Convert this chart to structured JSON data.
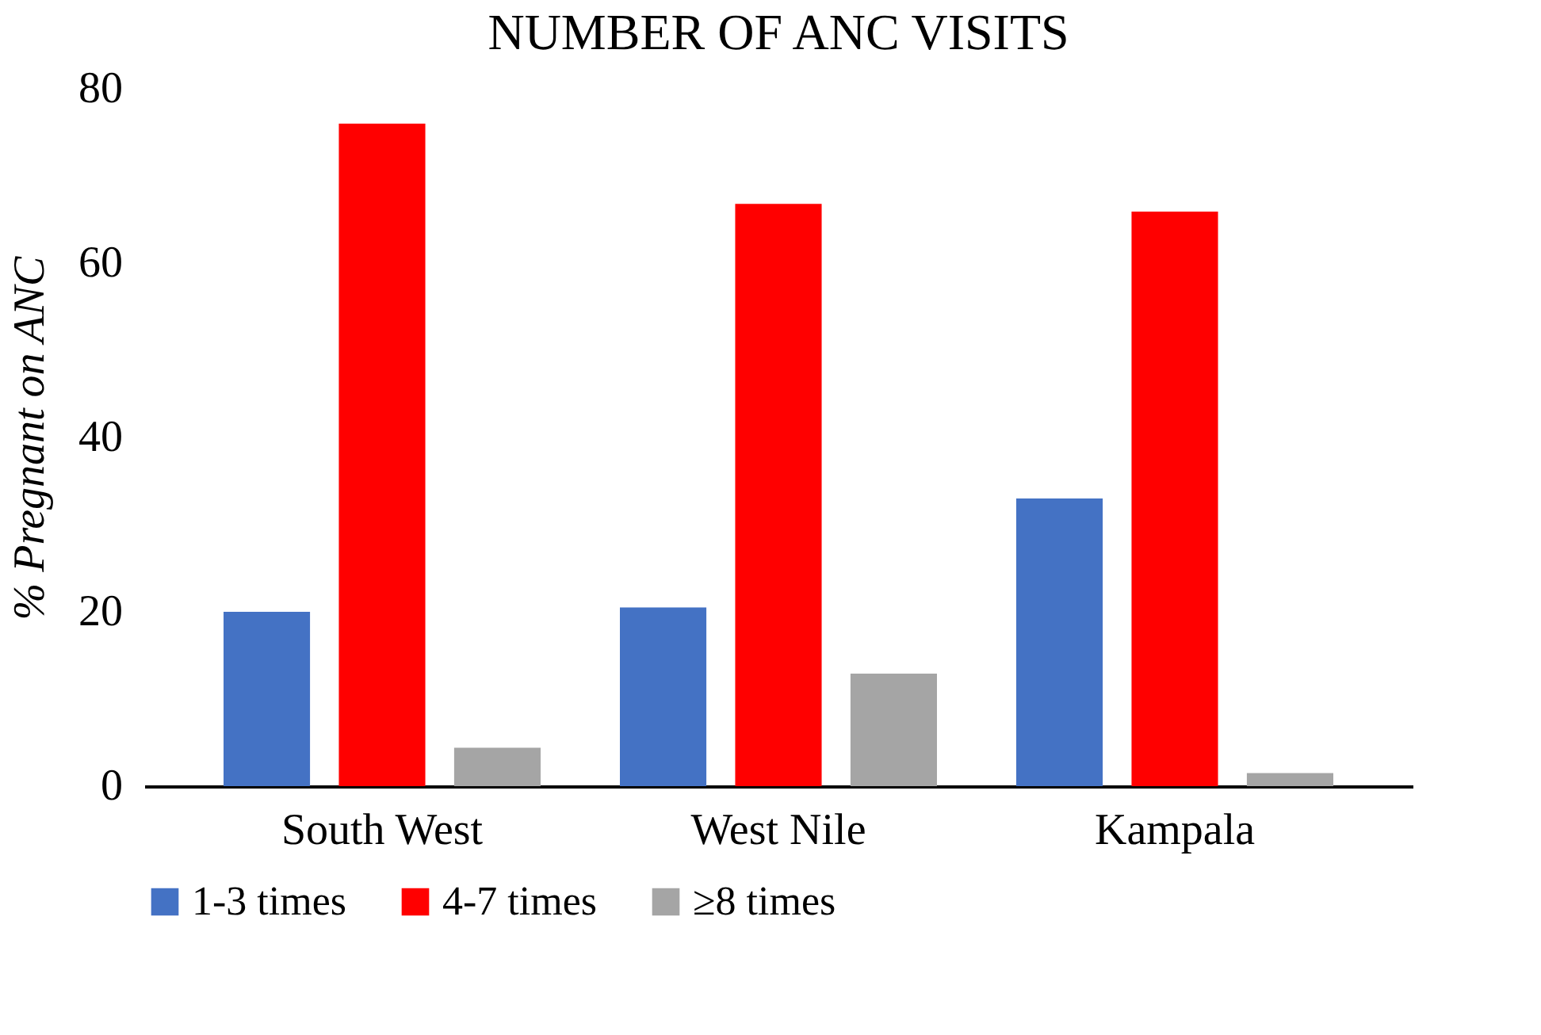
{
  "chart_data": {
    "type": "bar",
    "title": "NUMBER OF ANC VISITS",
    "ylabel": "% Pregnant on ANC",
    "categories": [
      "South West",
      "West Nile",
      "Kampala"
    ],
    "series": [
      {
        "name": "1-3 times",
        "color": "#4472c4",
        "values": [
          20,
          20.5,
          33
        ]
      },
      {
        "name": "4-7 times",
        "color": "#ff0000",
        "values": [
          76,
          66.8,
          65.9
        ]
      },
      {
        "name": "≥8 times",
        "color": "#a5a5a5",
        "values": [
          4.4,
          12.9,
          1.5
        ]
      }
    ],
    "ylim": [
      0,
      80
    ],
    "yticks": [
      0,
      20,
      40,
      60,
      80
    ],
    "grid": false,
    "legend": "bottom"
  }
}
